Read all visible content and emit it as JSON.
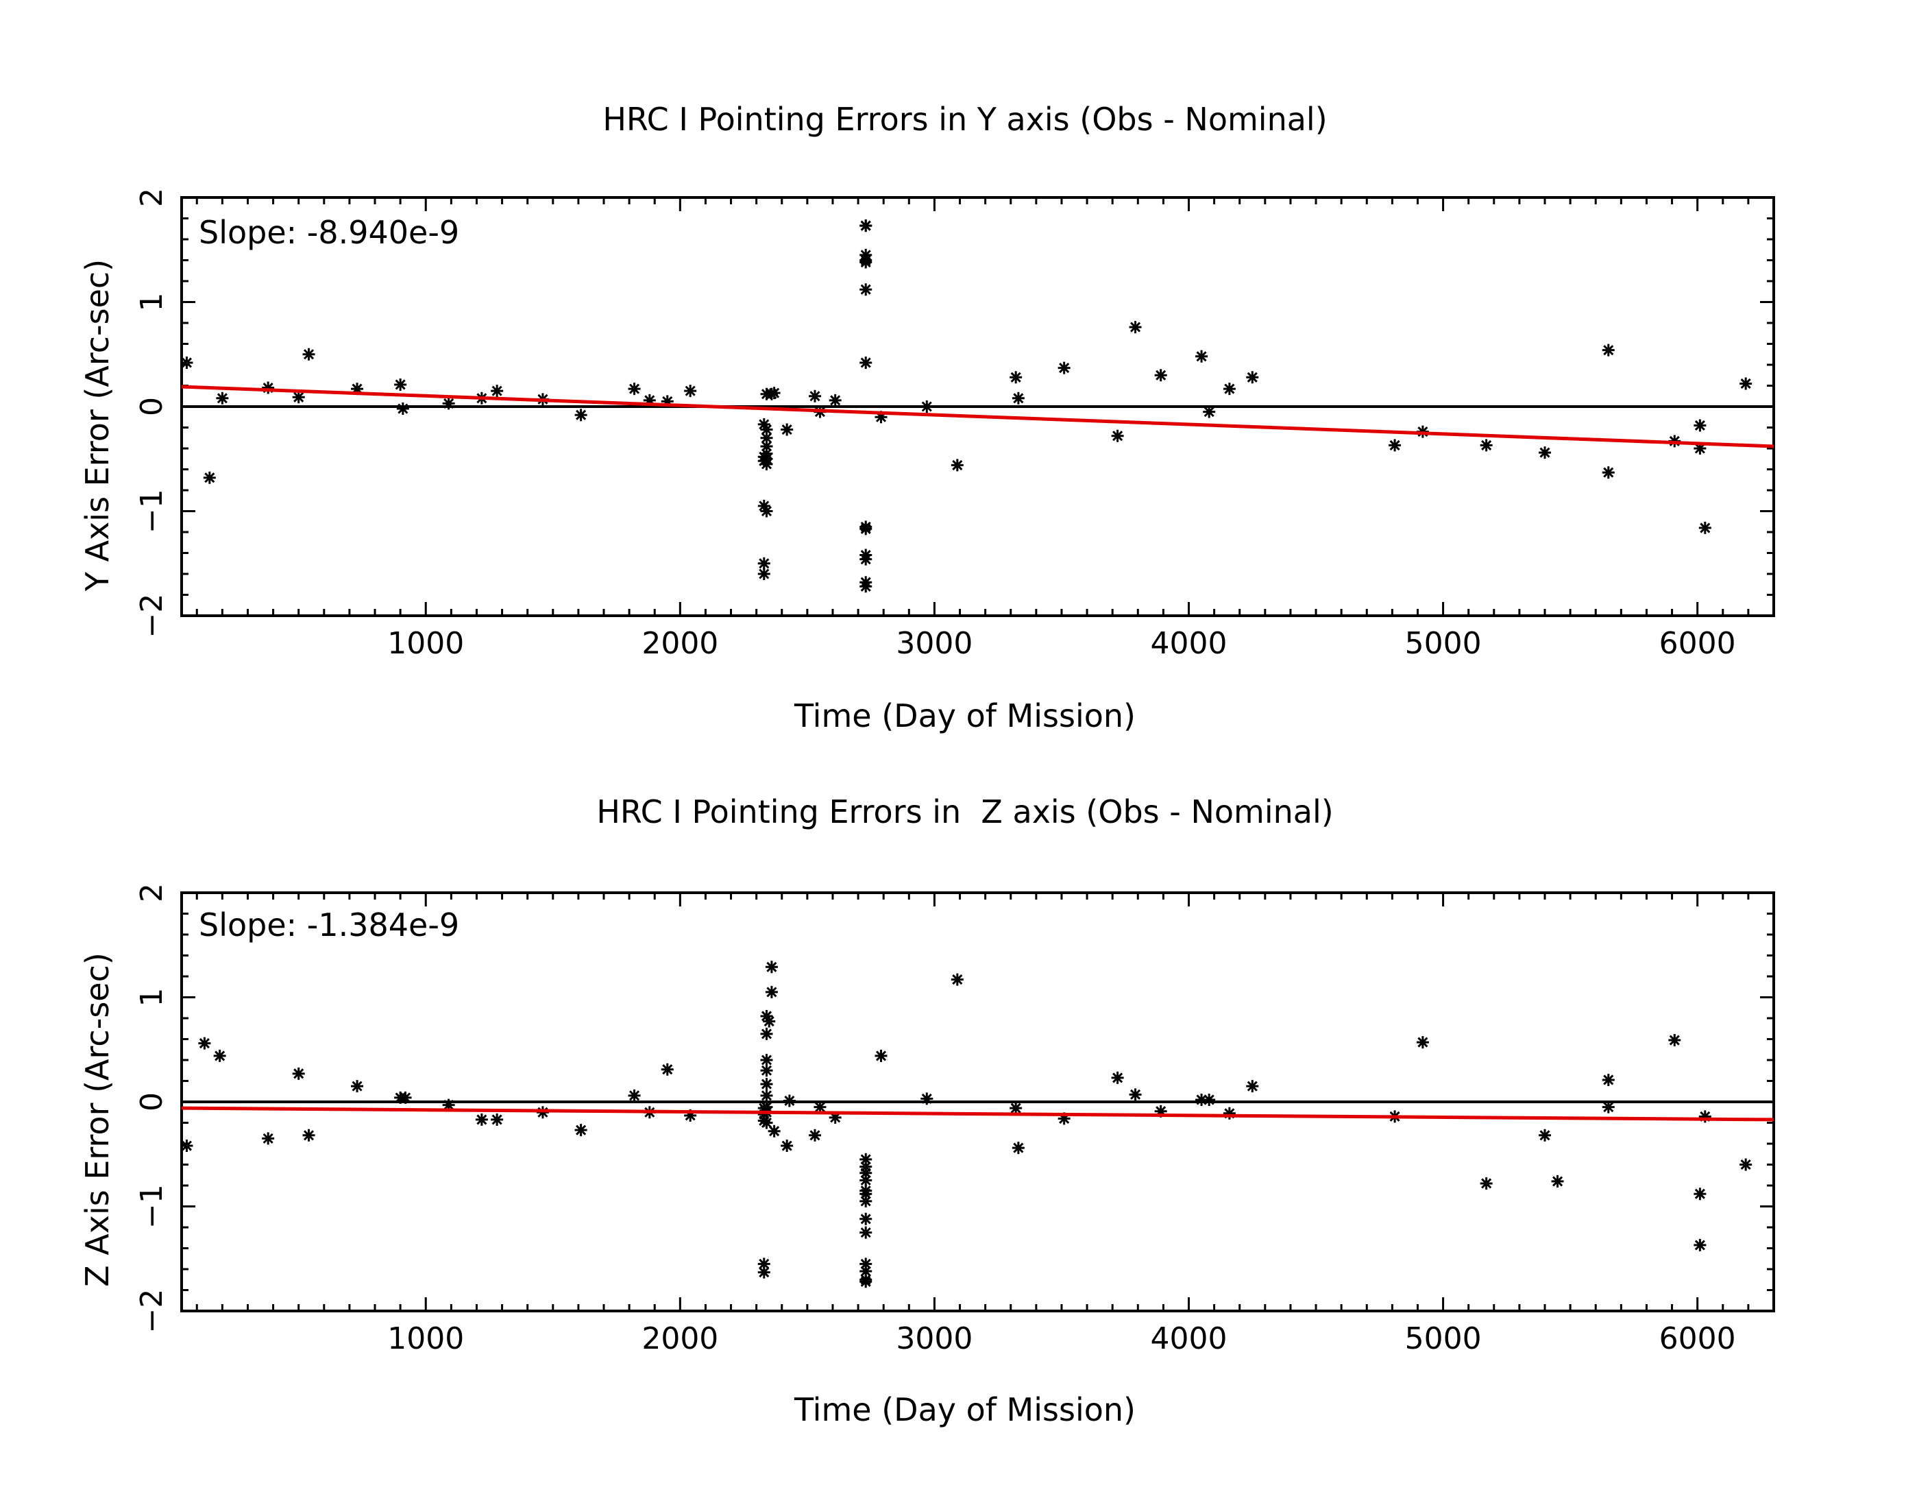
{
  "chart_data": [
    {
      "type": "scatter",
      "title": "HRC I Pointing Errors in Y axis (Obs - Nominal)",
      "xlabel": "Time (Day of Mission)",
      "ylabel": "Y Axis Error (Arc-sec)",
      "xlim": [
        40,
        6300
      ],
      "ylim": [
        -2,
        2
      ],
      "xticks": [
        1000,
        2000,
        3000,
        4000,
        5000,
        6000
      ],
      "yticks": [
        -2,
        -1,
        0,
        1,
        2
      ],
      "slope_label": "Slope: -8.940e-9",
      "zero_line": 0,
      "fit_line": {
        "color": "#e00000",
        "x": [
          40,
          6300
        ],
        "y": [
          0.19,
          -0.38
        ]
      },
      "points": {
        "x": [
          60,
          150,
          200,
          380,
          500,
          540,
          730,
          900,
          910,
          1090,
          1220,
          1280,
          1460,
          1610,
          1820,
          1880,
          1950,
          2040,
          2330,
          2330,
          2330,
          2330,
          2330,
          2330,
          2340,
          2340,
          2340,
          2340,
          2340,
          2340,
          2340,
          2340,
          2360,
          2370,
          2420,
          2530,
          2550,
          2610,
          2730,
          2730,
          2730,
          2730,
          2730,
          2730,
          2730,
          2730,
          2730,
          2730,
          2730,
          2730,
          2730,
          2790,
          2970,
          3090,
          3320,
          3330,
          3510,
          3720,
          3790,
          3890,
          4050,
          4080,
          4160,
          4250,
          4810,
          4920,
          5170,
          5400,
          5650,
          5650,
          5910,
          6010,
          6010,
          6030,
          6190
        ],
        "y": [
          0.42,
          -0.68,
          0.08,
          0.18,
          0.09,
          0.5,
          0.17,
          0.21,
          -0.02,
          0.03,
          0.08,
          0.15,
          0.07,
          -0.08,
          0.17,
          0.06,
          0.05,
          0.15,
          -0.17,
          -0.48,
          -0.52,
          -0.95,
          -1.5,
          -1.6,
          0.12,
          -0.22,
          -0.3,
          -0.38,
          -0.45,
          -0.5,
          -0.55,
          -1.0,
          0.12,
          0.13,
          -0.22,
          0.1,
          -0.05,
          0.06,
          1.73,
          1.45,
          1.38,
          1.12,
          0.42,
          -1.15,
          -1.17,
          -1.42,
          -1.46,
          -1.68,
          -1.72,
          1.73,
          1.4,
          -0.1,
          0.0,
          -0.56,
          0.28,
          0.08,
          0.37,
          -0.28,
          0.76,
          0.3,
          0.48,
          -0.05,
          0.17,
          0.28,
          -0.37,
          -0.24,
          -0.37,
          -0.44,
          0.54,
          -0.63,
          -0.33,
          -0.18,
          -0.4,
          -1.16,
          0.22
        ]
      }
    },
    {
      "type": "scatter",
      "title": "HRC I Pointing Errors in  Z axis (Obs - Nominal)",
      "xlabel": "Time (Day of Mission)",
      "ylabel": "Z Axis Error (Arc-sec)",
      "xlim": [
        40,
        6300
      ],
      "ylim": [
        -2,
        2
      ],
      "xticks": [
        1000,
        2000,
        3000,
        4000,
        5000,
        6000
      ],
      "yticks": [
        -2,
        -1,
        0,
        1,
        2
      ],
      "slope_label": "Slope: -1.384e-9",
      "zero_line": 0,
      "fit_line": {
        "color": "#e00000",
        "x": [
          40,
          6300
        ],
        "y": [
          -0.06,
          -0.17
        ]
      },
      "points": {
        "x": [
          60,
          130,
          190,
          380,
          500,
          540,
          730,
          900,
          920,
          1090,
          1220,
          1280,
          1460,
          1610,
          1820,
          1880,
          1950,
          2040,
          2330,
          2330,
          2330,
          2330,
          2330,
          2340,
          2340,
          2340,
          2340,
          2340,
          2340,
          2340,
          2340,
          2340,
          2350,
          2360,
          2360,
          2370,
          2420,
          2430,
          2530,
          2550,
          2610,
          2730,
          2730,
          2730,
          2730,
          2730,
          2730,
          2730,
          2730,
          2730,
          2730,
          2730,
          2730,
          2730,
          2790,
          2970,
          3090,
          3320,
          3330,
          3510,
          3720,
          3790,
          3890,
          4050,
          4080,
          4160,
          4250,
          4810,
          4920,
          5170,
          5400,
          5450,
          5650,
          5650,
          5910,
          6010,
          6010,
          6030,
          6190
        ],
        "y": [
          -0.42,
          0.56,
          0.44,
          -0.35,
          0.27,
          -0.32,
          0.15,
          0.04,
          0.04,
          -0.03,
          -0.17,
          -0.17,
          -0.1,
          -0.27,
          0.06,
          -0.1,
          0.31,
          -0.13,
          -0.06,
          -0.12,
          -0.18,
          -1.55,
          -1.63,
          0.82,
          0.65,
          0.4,
          0.3,
          0.17,
          0.06,
          -0.05,
          -0.1,
          -0.2,
          0.77,
          1.29,
          1.05,
          -0.28,
          -0.42,
          0.01,
          -0.32,
          -0.05,
          -0.15,
          -0.55,
          -0.62,
          -0.68,
          -0.75,
          -0.85,
          -0.88,
          -1.12,
          -1.25,
          -1.55,
          -1.62,
          -1.7,
          -1.72,
          -0.95,
          0.44,
          0.03,
          1.17,
          -0.06,
          -0.44,
          -0.16,
          0.23,
          0.07,
          -0.09,
          0.02,
          0.02,
          -0.11,
          0.15,
          -0.14,
          0.57,
          -0.78,
          -0.32,
          -0.76,
          0.21,
          -0.05,
          0.59,
          -0.88,
          -1.37,
          -0.14,
          -0.6
        ]
      }
    }
  ]
}
